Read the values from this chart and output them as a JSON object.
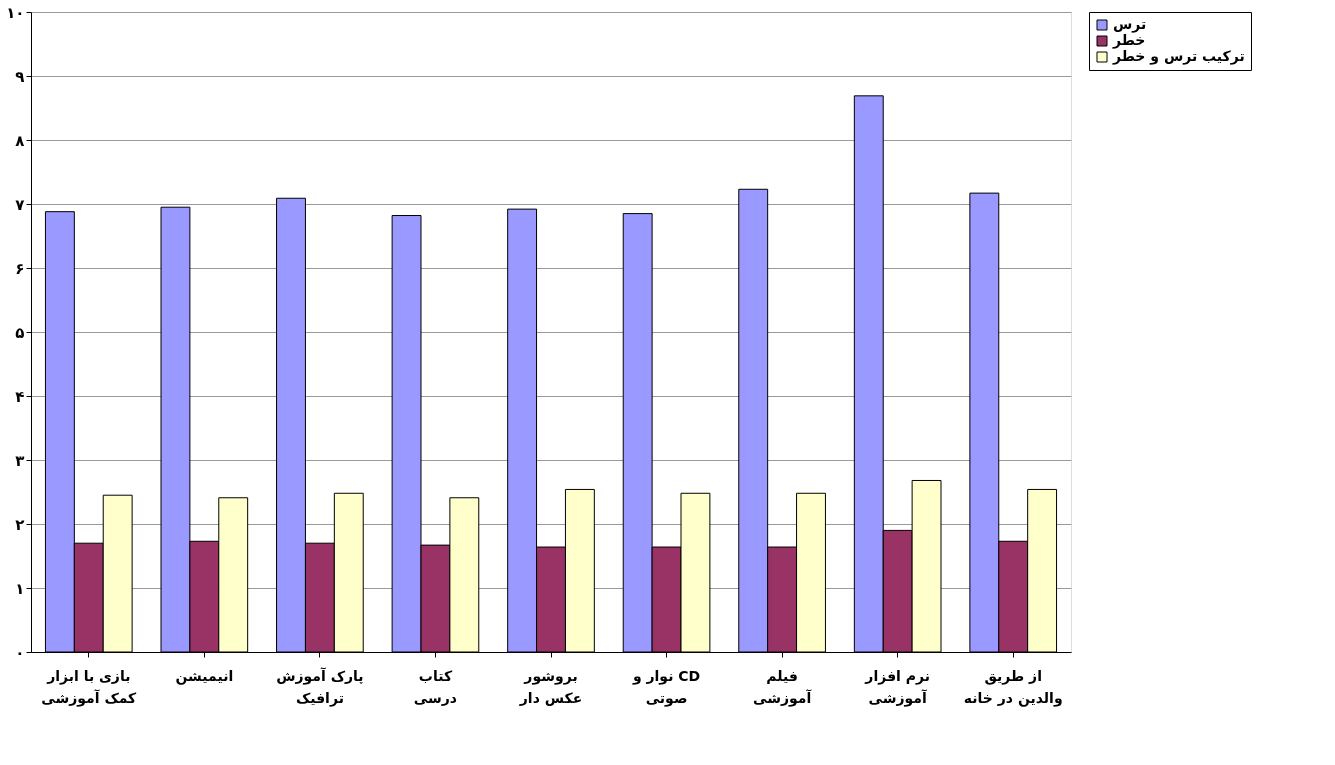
{
  "chart_data": {
    "type": "bar",
    "categories": [
      "بازی با ابزار\nکمک آموزشی",
      "انیمیشن",
      "پارک آموزش\nترافیک",
      "کتاب\nدرسی",
      "بروشور\nعکس دار",
      "نوار و CD\nصوتی",
      "فیلم\nآموزشی",
      "نرم افزار\nآموزشی",
      "از طریق\nوالدین در خانه"
    ],
    "series": [
      {
        "name": "ترس",
        "color": "#9999ff",
        "values": [
          6.88,
          6.95,
          7.09,
          6.82,
          6.92,
          6.85,
          7.23,
          8.69,
          7.17
        ]
      },
      {
        "name": "خطر",
        "color": "#993366",
        "values": [
          1.7,
          1.73,
          1.7,
          1.67,
          1.64,
          1.64,
          1.64,
          1.9,
          1.73
        ]
      },
      {
        "name": "ترکیب ترس و خطر",
        "color": "#ffffcc",
        "values": [
          2.45,
          2.41,
          2.48,
          2.41,
          2.54,
          2.48,
          2.48,
          2.68,
          2.54
        ]
      }
    ],
    "ylim": [
      0,
      10
    ],
    "yticks": [
      {
        "value": 0,
        "label": "۰"
      },
      {
        "value": 1,
        "label": "۱"
      },
      {
        "value": 2,
        "label": "۲"
      },
      {
        "value": 3,
        "label": "۳"
      },
      {
        "value": 4,
        "label": "۴"
      },
      {
        "value": 5,
        "label": "۵"
      },
      {
        "value": 6,
        "label": "۶"
      },
      {
        "value": 7,
        "label": "۷"
      },
      {
        "value": 8,
        "label": "۸"
      },
      {
        "value": 9,
        "label": "۹"
      },
      {
        "value": 10,
        "label": "۱۰"
      }
    ],
    "grid": "y",
    "legend": "right"
  }
}
